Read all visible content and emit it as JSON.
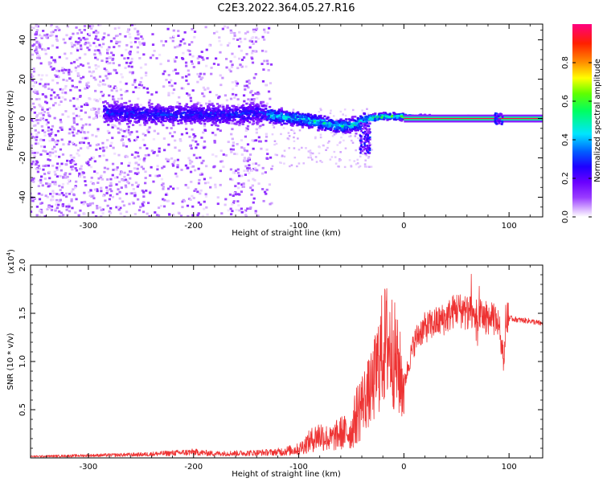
{
  "figure": {
    "title": "C2E3.2022.364.05.27.R16"
  },
  "chart_data": [
    {
      "type": "heatmap",
      "panel": "spectrogram",
      "xlabel": "Height of straight line (km)",
      "ylabel": "Frequency (Hz)",
      "xlim": [
        -355,
        132
      ],
      "ylim": [
        -50,
        48
      ],
      "xticks": [
        -300,
        -200,
        -100,
        0,
        100
      ],
      "xtick_labels": [
        "-300",
        "-200",
        "-100",
        "0",
        "100"
      ],
      "yticks": [
        -40,
        -20,
        0,
        20,
        40
      ],
      "ytick_labels": [
        "-40",
        "-20",
        "0",
        "20",
        "40"
      ],
      "colorbar": {
        "label": "Normalized spectral amplitude",
        "range": [
          0,
          1
        ],
        "ticks": [
          0.0,
          0.2,
          0.4,
          0.6,
          0.8
        ],
        "tick_labels": [
          "0.0",
          "0.2",
          "0.4",
          "0.6",
          "0.8"
        ],
        "colormap": [
          "#ffffff",
          "#d9b3ff",
          "#9a3dff",
          "#6a00ff",
          "#1e00ff",
          "#0060ff",
          "#00e5ff",
          "#00ff60",
          "#60ff00",
          "#ffff00",
          "#ff9000",
          "#ff2000",
          "#ff0080"
        ]
      },
      "center_track": [
        {
          "x": -280,
          "y": 3
        },
        {
          "x": -240,
          "y": 2
        },
        {
          "x": -200,
          "y": 2
        },
        {
          "x": -160,
          "y": 2
        },
        {
          "x": -140,
          "y": 3
        },
        {
          "x": -120,
          "y": 1
        },
        {
          "x": -100,
          "y": 0
        },
        {
          "x": -80,
          "y": -2
        },
        {
          "x": -60,
          "y": -4
        },
        {
          "x": -45,
          "y": -3
        },
        {
          "x": -35,
          "y": 0
        },
        {
          "x": -20,
          "y": 1
        },
        {
          "x": 0,
          "y": 1
        },
        {
          "x": 40,
          "y": 0
        },
        {
          "x": 90,
          "y": 0
        },
        {
          "x": 132,
          "y": 0
        }
      ],
      "noise_region": {
        "x": [
          -355,
          -125
        ],
        "y": [
          -50,
          48
        ]
      }
    },
    {
      "type": "line",
      "panel": "snr",
      "xlabel": "Height of straight line (km)",
      "ylabel": "SNR (10 * v/v)",
      "yscale_label": "(x10",
      "yscale_exp": "4",
      "yscale_close": ")",
      "xlim": [
        -355,
        132
      ],
      "ylim": [
        0,
        20000
      ],
      "xticks": [
        -300,
        -200,
        -100,
        0,
        100
      ],
      "xtick_labels": [
        "-300",
        "-200",
        "-100",
        "0",
        "100"
      ],
      "yticks": [
        5000,
        10000,
        15000,
        20000
      ],
      "ytick_labels": [
        "0.5",
        "1.0",
        "1.5",
        "2.0"
      ],
      "color": "#ee3333",
      "series": [
        {
          "x": [
            -355,
            -300,
            -250,
            -200,
            -180,
            -150,
            -120,
            -100,
            -90,
            -80,
            -70,
            -60,
            -50,
            -45,
            -40,
            -35,
            -30,
            -25,
            -20,
            -15,
            -10,
            -5,
            0,
            5,
            10,
            15,
            20,
            30,
            40,
            50,
            60,
            70,
            80,
            90,
            95,
            97,
            100,
            110,
            120,
            132
          ],
          "y": [
            150,
            250,
            350,
            600,
            450,
            500,
            600,
            900,
            1700,
            2400,
            1900,
            2600,
            2700,
            4500,
            5800,
            6500,
            7200,
            9500,
            11500,
            12000,
            11000,
            9000,
            7500,
            10000,
            12000,
            13000,
            13500,
            14000,
            14500,
            15500,
            15000,
            14800,
            14500,
            14200,
            10000,
            14800,
            14500,
            14300,
            14200,
            13900
          ]
        }
      ]
    }
  ]
}
